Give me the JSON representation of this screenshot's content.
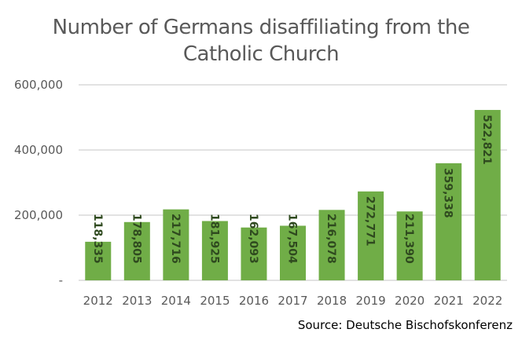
{
  "chart_data": {
    "type": "bar",
    "title": "Number of Germans disaffiliating from the Catholic Church",
    "title_lines": [
      "Number of Germans disaffiliating from the",
      "Catholic Church"
    ],
    "xlabel": "",
    "ylabel": "",
    "categories": [
      "2012",
      "2013",
      "2014",
      "2015",
      "2016",
      "2017",
      "2018",
      "2019",
      "2020",
      "2021",
      "2022"
    ],
    "values": [
      118335,
      178805,
      217716,
      181925,
      162093,
      167504,
      216078,
      272771,
      211390,
      359338,
      522821
    ],
    "data_labels": [
      "118,335",
      "178,805",
      "217,716",
      "181,925",
      "162,093",
      "167,504",
      "216,078",
      "272,771",
      "211,390",
      "359,338",
      "522,821"
    ],
    "ylim": [
      0,
      600000
    ],
    "yticks": [
      0,
      200000,
      400000,
      600000
    ],
    "ytick_labels": [
      "-",
      "200,000",
      "400,000",
      "600,000"
    ],
    "grid": true,
    "legend": "none",
    "bar_color": "#70ad47",
    "grid_color": "#d9d9d9",
    "source": "Source: Deutsche Bischofskonferenz"
  }
}
